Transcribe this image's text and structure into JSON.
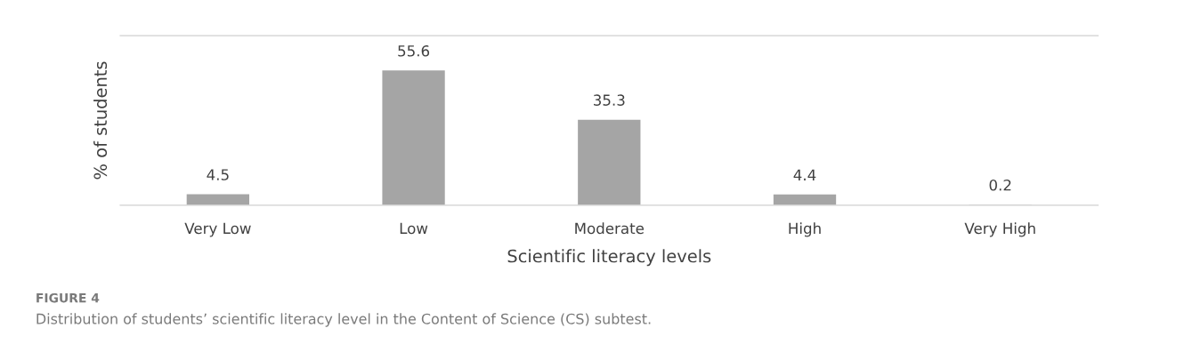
{
  "chart_data": {
    "type": "bar",
    "categories": [
      "Very Low",
      "Low",
      "Moderate",
      "High",
      "Very High"
    ],
    "values": [
      4.5,
      55.6,
      35.3,
      4.4,
      0.2
    ],
    "color": "#a5a5a5",
    "data_labels": true,
    "ylim": [
      0,
      70
    ],
    "tick_labels": "x",
    "xlabel": "Scientific literacy levels",
    "ylabel": "% of students",
    "annotations": [
      "FIGURE 4",
      "Distribution of students’ scientific literacy level in the Content of Science (CS) subtest."
    ]
  }
}
